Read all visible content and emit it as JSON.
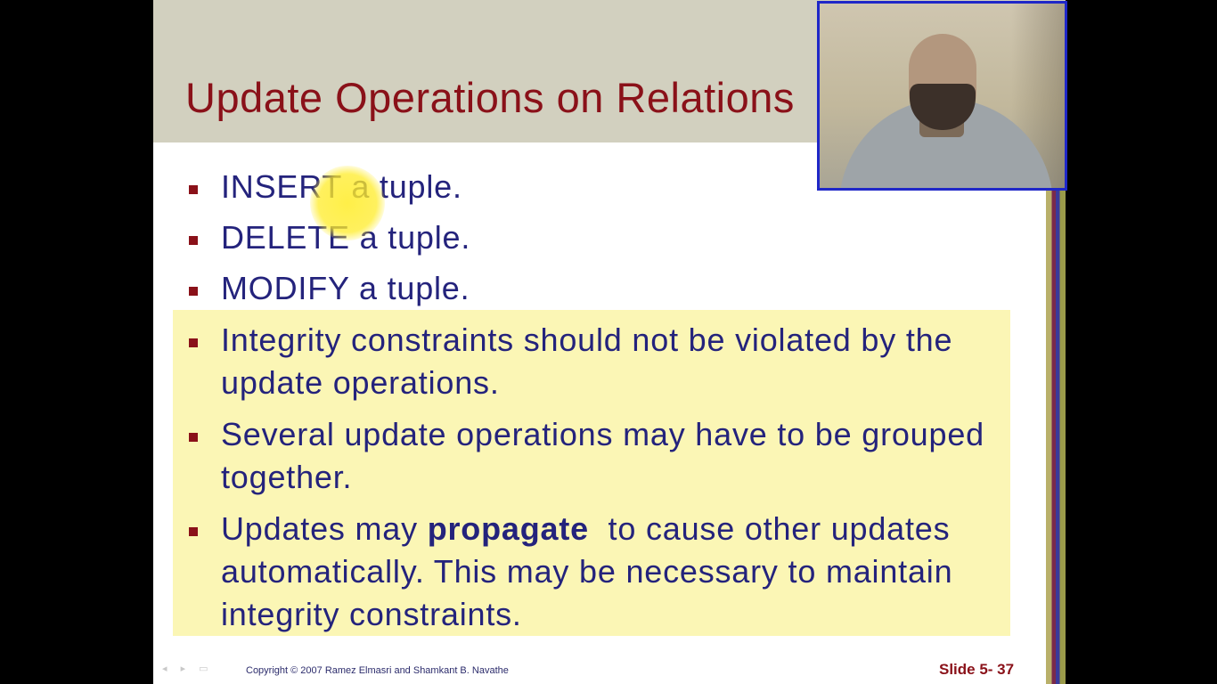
{
  "slide": {
    "title": "Update Operations on Relations",
    "bullets": [
      {
        "text": "INSERT a tuple."
      },
      {
        "text": "DELETE a tuple."
      },
      {
        "text": "MODIFY a tuple."
      },
      {
        "text": "Integrity constraints should not be violated by the update operations."
      },
      {
        "text": "Several update operations may have to be grouped together."
      },
      {
        "before": "Updates may ",
        "bold": "propagate",
        "after": "  to cause other updates automatically. This may be necessary to maintain integrity constraints."
      }
    ],
    "footer_copyright": "Copyright © 2007 Ramez Elmasri and Shamkant B. Navathe",
    "slide_number": "Slide 5- 37",
    "colors": {
      "title": "#8a1119",
      "body_text": "#24237c",
      "title_band": "#d2d0bf",
      "highlight": "#fbf6b5",
      "webcam_border": "#1f27c8"
    }
  },
  "webcam": {
    "label": "presenter-webcam"
  }
}
